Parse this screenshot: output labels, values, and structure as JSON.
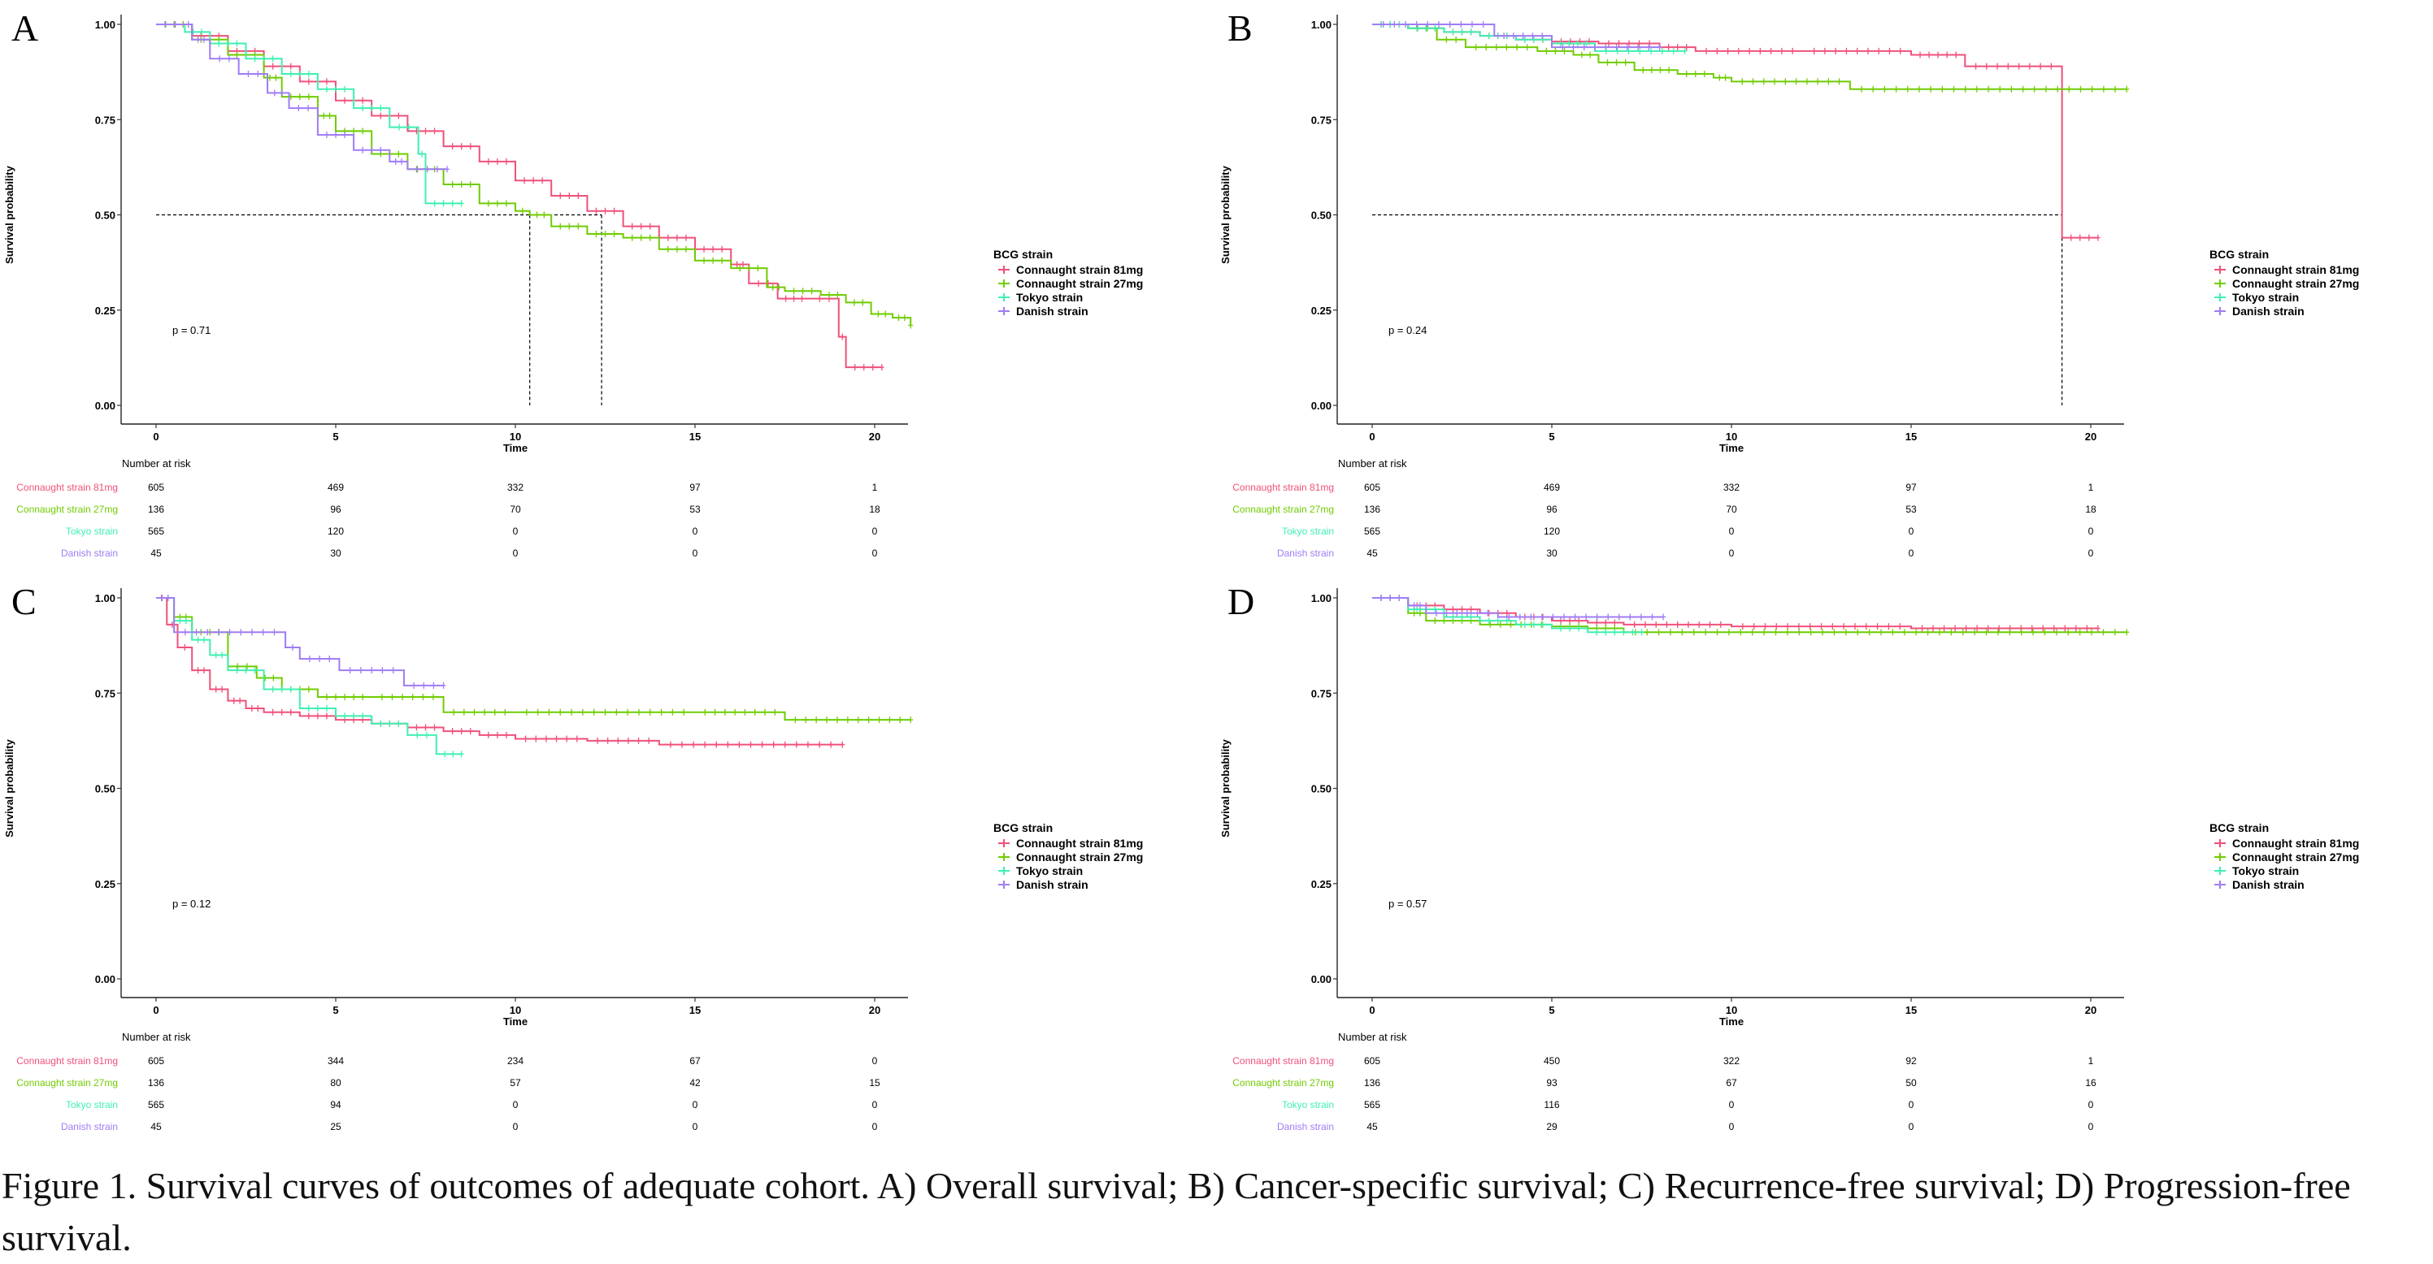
{
  "figure": {
    "caption": "Figure 1. Survival curves of outcomes of adequate cohort. A) Overall survival; B) Cancer-specific survival; C) Recurrence-free survival; D) Progression-free survival."
  },
  "colors": {
    "Connaught strain 81mg": "#f0507a",
    "Connaught strain 27mg": "#6fcc00",
    "Tokyo strain": "#3ff0b0",
    "Danish strain": "#a07cf5"
  },
  "chart_data": [
    {
      "panel": "A",
      "type": "line",
      "subtype": "kaplan-meier",
      "title": "Overall survival",
      "xlabel": "Time",
      "ylabel": "Survival probability",
      "xlim": [
        -1.9,
        21.1
      ],
      "ylim": [
        -0.05,
        1.04
      ],
      "xticks": [
        0,
        5,
        10,
        15,
        20
      ],
      "yticks": [
        "0.00",
        "0.25",
        "0.50",
        "0.75",
        "1.00"
      ],
      "grid": false,
      "pvalue": "p = 0.71",
      "legend": {
        "title": "BCG strain",
        "position": "right"
      },
      "median_lines": {
        "y": 0.5,
        "x": [
          10.4,
          12.4
        ]
      },
      "series": [
        {
          "name": "Connaught strain 81mg",
          "x": [
            0,
            1,
            2,
            3,
            4,
            5,
            6,
            7,
            8,
            9,
            10,
            11,
            12,
            13,
            14,
            15,
            16,
            16.5,
            17.3,
            18.2,
            19.0,
            19.2,
            20.2
          ],
          "y": [
            1.0,
            0.97,
            0.93,
            0.89,
            0.85,
            0.8,
            0.76,
            0.72,
            0.68,
            0.64,
            0.59,
            0.55,
            0.51,
            0.47,
            0.44,
            0.41,
            0.37,
            0.32,
            0.28,
            0.28,
            0.18,
            0.1,
            0.1
          ]
        },
        {
          "name": "Connaught strain 27mg",
          "x": [
            0,
            1,
            2,
            3,
            3.5,
            4.5,
            5,
            6,
            7,
            8,
            9,
            10,
            10.4,
            11,
            12,
            13,
            14,
            15,
            16,
            17,
            17.5,
            18.5,
            19.2,
            19.9,
            20.5,
            21
          ],
          "y": [
            1.0,
            0.96,
            0.92,
            0.86,
            0.81,
            0.76,
            0.72,
            0.66,
            0.62,
            0.58,
            0.53,
            0.51,
            0.5,
            0.47,
            0.45,
            0.44,
            0.41,
            0.38,
            0.36,
            0.31,
            0.3,
            0.29,
            0.27,
            0.24,
            0.23,
            0.21
          ]
        },
        {
          "name": "Tokyo strain",
          "x": [
            0,
            0.8,
            1.5,
            2.5,
            3.5,
            4.5,
            5.5,
            6.5,
            7.3,
            7.5,
            8.5
          ],
          "y": [
            1.0,
            0.98,
            0.95,
            0.91,
            0.87,
            0.83,
            0.78,
            0.73,
            0.66,
            0.53,
            0.53
          ]
        },
        {
          "name": "Danish strain",
          "x": [
            0,
            0.8,
            1.0,
            1.5,
            2.3,
            3.1,
            3.7,
            4.5,
            5.5,
            6.5,
            7.0,
            8.1
          ],
          "y": [
            1.0,
            1.0,
            0.96,
            0.91,
            0.87,
            0.82,
            0.78,
            0.71,
            0.67,
            0.64,
            0.62,
            0.62
          ]
        }
      ],
      "risk_table": {
        "title": "Number at risk",
        "times": [
          0,
          5,
          10,
          15,
          20
        ],
        "rows": [
          {
            "name": "Connaught strain 81mg",
            "values": [
              605,
              469,
              332,
              97,
              1
            ]
          },
          {
            "name": "Connaught strain 27mg",
            "values": [
              136,
              96,
              70,
              53,
              18
            ]
          },
          {
            "name": "Tokyo strain",
            "values": [
              565,
              120,
              0,
              0,
              0
            ]
          },
          {
            "name": "Danish strain",
            "values": [
              45,
              30,
              0,
              0,
              0
            ]
          }
        ]
      }
    },
    {
      "panel": "B",
      "type": "line",
      "subtype": "kaplan-meier",
      "title": "Cancer-specific survival",
      "xlabel": "Time",
      "ylabel": "Survival probability",
      "xlim": [
        -1.9,
        21.1
      ],
      "ylim": [
        -0.05,
        1.04
      ],
      "xticks": [
        0,
        5,
        10,
        15,
        20
      ],
      "yticks": [
        "0.00",
        "0.25",
        "0.50",
        "0.75",
        "1.00"
      ],
      "grid": false,
      "pvalue": "p = 0.24",
      "legend": {
        "title": "BCG strain",
        "position": "right"
      },
      "median_lines": {
        "y": 0.5,
        "x": [
          19.2
        ]
      },
      "series": [
        {
          "name": "Connaught strain 81mg",
          "x": [
            0,
            1,
            2,
            3,
            4,
            5,
            6.3,
            8,
            9,
            12,
            15,
            16.5,
            19.2,
            20.2
          ],
          "y": [
            1.0,
            0.99,
            0.98,
            0.97,
            0.96,
            0.955,
            0.95,
            0.94,
            0.93,
            0.93,
            0.92,
            0.89,
            0.44,
            0.44
          ]
        },
        {
          "name": "Connaught strain 27mg",
          "x": [
            0,
            1,
            1.8,
            2.6,
            4.6,
            5.6,
            6.3,
            7.3,
            8.5,
            9.5,
            10,
            13.3,
            21
          ],
          "y": [
            1.0,
            0.99,
            0.96,
            0.94,
            0.93,
            0.92,
            0.9,
            0.88,
            0.87,
            0.86,
            0.85,
            0.83,
            0.83
          ]
        },
        {
          "name": "Tokyo strain",
          "x": [
            0,
            1,
            2,
            3,
            4,
            5,
            6.2,
            8.7
          ],
          "y": [
            1.0,
            0.99,
            0.98,
            0.97,
            0.96,
            0.95,
            0.93,
            0.93
          ]
        },
        {
          "name": "Danish strain",
          "x": [
            0,
            3.4,
            5.0,
            8.0
          ],
          "y": [
            1.0,
            0.97,
            0.94,
            0.94
          ]
        }
      ],
      "risk_table": {
        "title": "Number at risk",
        "times": [
          0,
          5,
          10,
          15,
          20
        ],
        "rows": [
          {
            "name": "Connaught strain 81mg",
            "values": [
              605,
              469,
              332,
              97,
              1
            ]
          },
          {
            "name": "Connaught strain 27mg",
            "values": [
              136,
              96,
              70,
              53,
              18
            ]
          },
          {
            "name": "Tokyo strain",
            "values": [
              565,
              120,
              0,
              0,
              0
            ]
          },
          {
            "name": "Danish strain",
            "values": [
              45,
              30,
              0,
              0,
              0
            ]
          }
        ]
      }
    },
    {
      "panel": "C",
      "type": "line",
      "subtype": "kaplan-meier",
      "title": "Recurrence-free survival",
      "xlabel": "Time",
      "ylabel": "Survival probability",
      "xlim": [
        -1.9,
        21.1
      ],
      "ylim": [
        -0.05,
        1.04
      ],
      "xticks": [
        0,
        5,
        10,
        15,
        20
      ],
      "yticks": [
        "0.00",
        "0.25",
        "0.50",
        "0.75",
        "1.00"
      ],
      "grid": false,
      "pvalue": "p = 0.12",
      "legend": {
        "title": "BCG strain",
        "position": "right"
      },
      "median_lines": null,
      "series": [
        {
          "name": "Connaught strain 81mg",
          "x": [
            0,
            0.3,
            0.6,
            1.0,
            1.5,
            2.0,
            2.5,
            3.0,
            4.0,
            5.0,
            6.0,
            7.0,
            8.0,
            9.0,
            10,
            12,
            14,
            19.1
          ],
          "y": [
            1.0,
            0.93,
            0.87,
            0.81,
            0.76,
            0.73,
            0.71,
            0.7,
            0.69,
            0.68,
            0.67,
            0.66,
            0.65,
            0.64,
            0.63,
            0.625,
            0.615,
            0.615
          ]
        },
        {
          "name": "Connaught strain 27mg",
          "x": [
            0,
            0.5,
            1.0,
            2.0,
            2.8,
            3.5,
            4.5,
            6.0,
            8.0,
            10,
            15,
            17.5,
            21
          ],
          "y": [
            1.0,
            0.95,
            0.91,
            0.82,
            0.79,
            0.76,
            0.74,
            0.74,
            0.7,
            0.7,
            0.7,
            0.68,
            0.68
          ]
        },
        {
          "name": "Tokyo strain",
          "x": [
            0,
            0.5,
            1.0,
            1.5,
            2.0,
            3.0,
            4.0,
            5.0,
            6.0,
            7.0,
            7.8,
            8.5
          ],
          "y": [
            1.0,
            0.94,
            0.89,
            0.85,
            0.81,
            0.76,
            0.71,
            0.69,
            0.67,
            0.64,
            0.59,
            0.59
          ]
        },
        {
          "name": "Danish strain",
          "x": [
            0,
            0.5,
            3.6,
            4.0,
            5.1,
            6.9,
            8.0
          ],
          "y": [
            1.0,
            0.91,
            0.87,
            0.84,
            0.81,
            0.77,
            0.77
          ]
        }
      ],
      "risk_table": {
        "title": "Number at risk",
        "times": [
          0,
          5,
          10,
          15,
          20
        ],
        "rows": [
          {
            "name": "Connaught strain 81mg",
            "values": [
              605,
              344,
              234,
              67,
              0
            ]
          },
          {
            "name": "Connaught strain 27mg",
            "values": [
              136,
              80,
              57,
              42,
              15
            ]
          },
          {
            "name": "Tokyo strain",
            "values": [
              565,
              94,
              0,
              0,
              0
            ]
          },
          {
            "name": "Danish strain",
            "values": [
              45,
              25,
              0,
              0,
              0
            ]
          }
        ]
      }
    },
    {
      "panel": "D",
      "type": "line",
      "subtype": "kaplan-meier",
      "title": "Progression-free survival",
      "xlabel": "Time",
      "ylabel": "Survival probability",
      "xlim": [
        -1.9,
        21.1
      ],
      "ylim": [
        -0.05,
        1.04
      ],
      "xticks": [
        0,
        5,
        10,
        15,
        20
      ],
      "yticks": [
        "0.00",
        "0.25",
        "0.50",
        "0.75",
        "1.00"
      ],
      "grid": false,
      "pvalue": "p = 0.57",
      "legend": {
        "title": "BCG strain",
        "position": "right"
      },
      "median_lines": null,
      "series": [
        {
          "name": "Connaught strain 81mg",
          "x": [
            0,
            1,
            2,
            3,
            4,
            5,
            6,
            7,
            10,
            15,
            20.2
          ],
          "y": [
            1.0,
            0.98,
            0.97,
            0.96,
            0.95,
            0.94,
            0.935,
            0.93,
            0.925,
            0.92,
            0.92
          ]
        },
        {
          "name": "Connaught strain 27mg",
          "x": [
            0,
            1,
            1.5,
            3,
            5,
            6,
            7,
            21
          ],
          "y": [
            1.0,
            0.96,
            0.94,
            0.93,
            0.925,
            0.92,
            0.91,
            0.91
          ]
        },
        {
          "name": "Tokyo strain",
          "x": [
            0,
            1,
            2,
            3,
            4,
            5,
            6,
            7.5
          ],
          "y": [
            1.0,
            0.97,
            0.95,
            0.94,
            0.93,
            0.92,
            0.91,
            0.91
          ]
        },
        {
          "name": "Danish strain",
          "x": [
            0,
            1,
            1.5,
            3.5,
            8.1
          ],
          "y": [
            1.0,
            0.98,
            0.96,
            0.95,
            0.95
          ]
        }
      ],
      "risk_table": {
        "title": "Number at risk",
        "times": [
          0,
          5,
          10,
          15,
          20
        ],
        "rows": [
          {
            "name": "Connaught strain 81mg",
            "values": [
              605,
              450,
              322,
              92,
              1
            ]
          },
          {
            "name": "Connaught strain 27mg",
            "values": [
              136,
              93,
              67,
              50,
              16
            ]
          },
          {
            "name": "Tokyo strain",
            "values": [
              565,
              116,
              0,
              0,
              0
            ]
          },
          {
            "name": "Danish strain",
            "values": [
              45,
              29,
              0,
              0,
              0
            ]
          }
        ]
      }
    }
  ]
}
